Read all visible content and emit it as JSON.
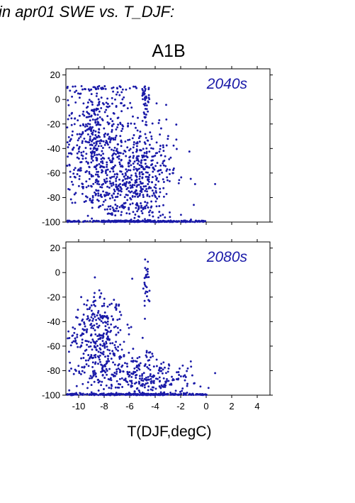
{
  "header": {
    "title": "in apr01 SWE vs. T_DJF:"
  },
  "scenario": "A1B",
  "colors": {
    "points": "#1a1aa8",
    "axis": "#000000"
  },
  "chart_data": [
    {
      "type": "scatter",
      "panel_label": "2040s",
      "xlim": [
        -11,
        5
      ],
      "ylim": [
        -100,
        25
      ],
      "xticks": [
        -10,
        -8,
        -6,
        -4,
        -2,
        0,
        2,
        4
      ],
      "yticks": [
        -100,
        -80,
        -60,
        -40,
        -20,
        0,
        20
      ],
      "show_xtick_labels": false,
      "grid": false,
      "points_description_series": [
        {
          "center": [
            -8.5,
            -35
          ],
          "spread": [
            1.3,
            30
          ],
          "count": 520
        },
        {
          "center": [
            -5.0,
            -60
          ],
          "spread": [
            1.3,
            25
          ],
          "count": 420
        },
        {
          "center": [
            -7.0,
            -75
          ],
          "spread": [
            1.5,
            15
          ],
          "count": 160
        },
        {
          "center": [
            -4.7,
            0
          ],
          "spread": [
            0.2,
            9
          ],
          "count": 40
        },
        {
          "center": [
            -5.0,
            -99.5
          ],
          "spread": [
            3.2,
            0.4
          ],
          "count": 260
        }
      ],
      "outliers": [
        [
          -7.4,
          -94
        ],
        [
          -3.4,
          -94
        ],
        [
          0.7,
          -69
        ],
        [
          -1.6,
          -100
        ],
        [
          -0.2,
          -99
        ]
      ]
    },
    {
      "type": "scatter",
      "panel_label": "2080s",
      "xlim": [
        -11,
        5
      ],
      "ylim": [
        -100,
        25
      ],
      "xticks": [
        -10,
        -8,
        -6,
        -4,
        -2,
        0,
        2,
        4
      ],
      "yticks": [
        -100,
        -80,
        -60,
        -40,
        -20,
        0,
        20
      ],
      "xlabel": "T(DJF,degC)",
      "show_xtick_labels": true,
      "grid": false,
      "points_description_series": [
        {
          "center": [
            -8.3,
            -50
          ],
          "spread": [
            0.9,
            18
          ],
          "count": 240
        },
        {
          "center": [
            -9.3,
            -65
          ],
          "spread": [
            0.8,
            20
          ],
          "count": 90
        },
        {
          "center": [
            -6.2,
            -82
          ],
          "spread": [
            1.6,
            11
          ],
          "count": 180
        },
        {
          "center": [
            -4.0,
            -88
          ],
          "spread": [
            1.8,
            8
          ],
          "count": 140
        },
        {
          "center": [
            -4.7,
            -10
          ],
          "spread": [
            0.2,
            12
          ],
          "count": 28
        },
        {
          "center": [
            -5.0,
            -99.5
          ],
          "spread": [
            3.4,
            0.4
          ],
          "count": 300
        }
      ],
      "outliers": [
        [
          -5.8,
          -5
        ],
        [
          0.7,
          -82
        ],
        [
          -1.5,
          -98
        ],
        [
          -9.8,
          -20
        ],
        [
          -10.8,
          -48
        ]
      ]
    }
  ]
}
